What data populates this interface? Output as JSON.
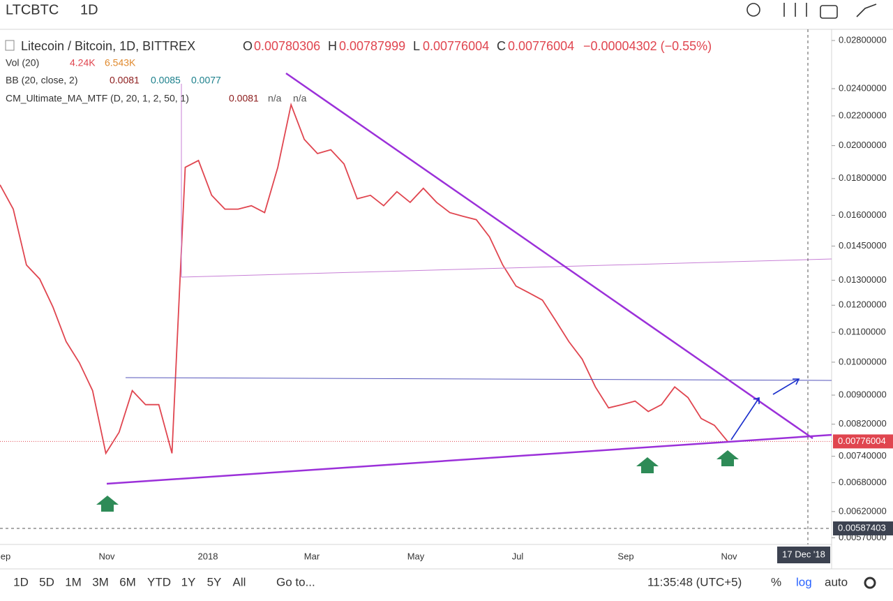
{
  "toolbar": {
    "symbol": "LTCBTC",
    "interval": "1D"
  },
  "legend": {
    "title": "Litecoin / Bitcoin, 1D, BITTREX",
    "o_label": "O",
    "o": "0.00780306",
    "h_label": "H",
    "h": "0.00787999",
    "l_label": "L",
    "l": "0.00776004",
    "c_label": "C",
    "c": "0.00776004",
    "change": "−0.00004302 (−0.55%)",
    "indicators": [
      {
        "name": "Vol (20)",
        "values": [
          "4.24K",
          "6.543K"
        ]
      },
      {
        "name": "BB (20, close, 2)",
        "values": [
          "0.0081",
          "0.0085",
          "0.0077"
        ]
      },
      {
        "name": "CM_Ultimate_MA_MTF (D, 20, 1, 2, 50, 1)",
        "values": [
          "0.0081",
          "n/a",
          "n/a"
        ]
      }
    ]
  },
  "chart_data": {
    "type": "line",
    "log_scale": true,
    "color": "#e0454f",
    "ylim": [
      0.00558,
      0.02902
    ],
    "yticks": [
      {
        "value": 0.028,
        "label": "0.02800000"
      },
      {
        "value": 0.024,
        "label": "0.02400000"
      },
      {
        "value": 0.022,
        "label": "0.02200000"
      },
      {
        "value": 0.02,
        "label": "0.02000000"
      },
      {
        "value": 0.018,
        "label": "0.01800000"
      },
      {
        "value": 0.016,
        "label": "0.01600000"
      },
      {
        "value": 0.0145,
        "label": "0.01450000"
      },
      {
        "value": 0.013,
        "label": "0.01300000"
      },
      {
        "value": 0.012,
        "label": "0.01200000"
      },
      {
        "value": 0.011,
        "label": "0.01100000"
      },
      {
        "value": 0.01,
        "label": "0.01000000"
      },
      {
        "value": 0.009,
        "label": "0.00900000"
      },
      {
        "value": 0.0082,
        "label": "0.00820000"
      },
      {
        "value": 0.0074,
        "label": "0.00740000"
      },
      {
        "value": 0.0068,
        "label": "0.00680000"
      },
      {
        "value": 0.0062,
        "label": "0.00620000"
      },
      {
        "value": 0.0057,
        "label": "0.00570000"
      }
    ],
    "x_labels": [
      "ep",
      "Nov",
      "2018",
      "Mar",
      "May",
      "Jul",
      "Sep",
      "Nov"
    ],
    "values": [
      0.01764,
      0.01632,
      0.01365,
      0.01305,
      0.01193,
      0.01068,
      0.00998,
      0.00913,
      0.00747,
      0.00799,
      0.00913,
      0.00873,
      0.00873,
      0.00747,
      0.01866,
      0.01907,
      0.01706,
      0.01632,
      0.01632,
      0.0165,
      0.01614,
      0.01866,
      0.0228,
      0.0204,
      0.0195,
      0.01974,
      0.01886,
      0.01687,
      0.01706,
      0.0165,
      0.01726,
      0.01668,
      0.01745,
      0.01668,
      0.01614,
      0.01595,
      0.01578,
      0.01493,
      0.01365,
      0.01276,
      0.01248,
      0.0122,
      0.01142,
      0.01068,
      0.0101,
      0.00924,
      0.00864,
      0.00873,
      0.00883,
      0.00854,
      0.00873,
      0.00924,
      0.00893,
      0.00835,
      0.00817,
      0.00776004
    ],
    "last_price": {
      "value": 0.00776004,
      "label": "0.00776004"
    },
    "crosshair_price": {
      "value": 0.00587403,
      "label": "0.00587403"
    },
    "crosshair_date": "17 Dec '18"
  },
  "bottom_bar": {
    "ranges": [
      "1D",
      "5D",
      "1M",
      "3M",
      "6M",
      "YTD",
      "1Y",
      "5Y",
      "All"
    ],
    "goto": "Go to...",
    "time": "11:35:48 (UTC+5)",
    "percent": "%",
    "log": "log",
    "auto": "auto"
  }
}
